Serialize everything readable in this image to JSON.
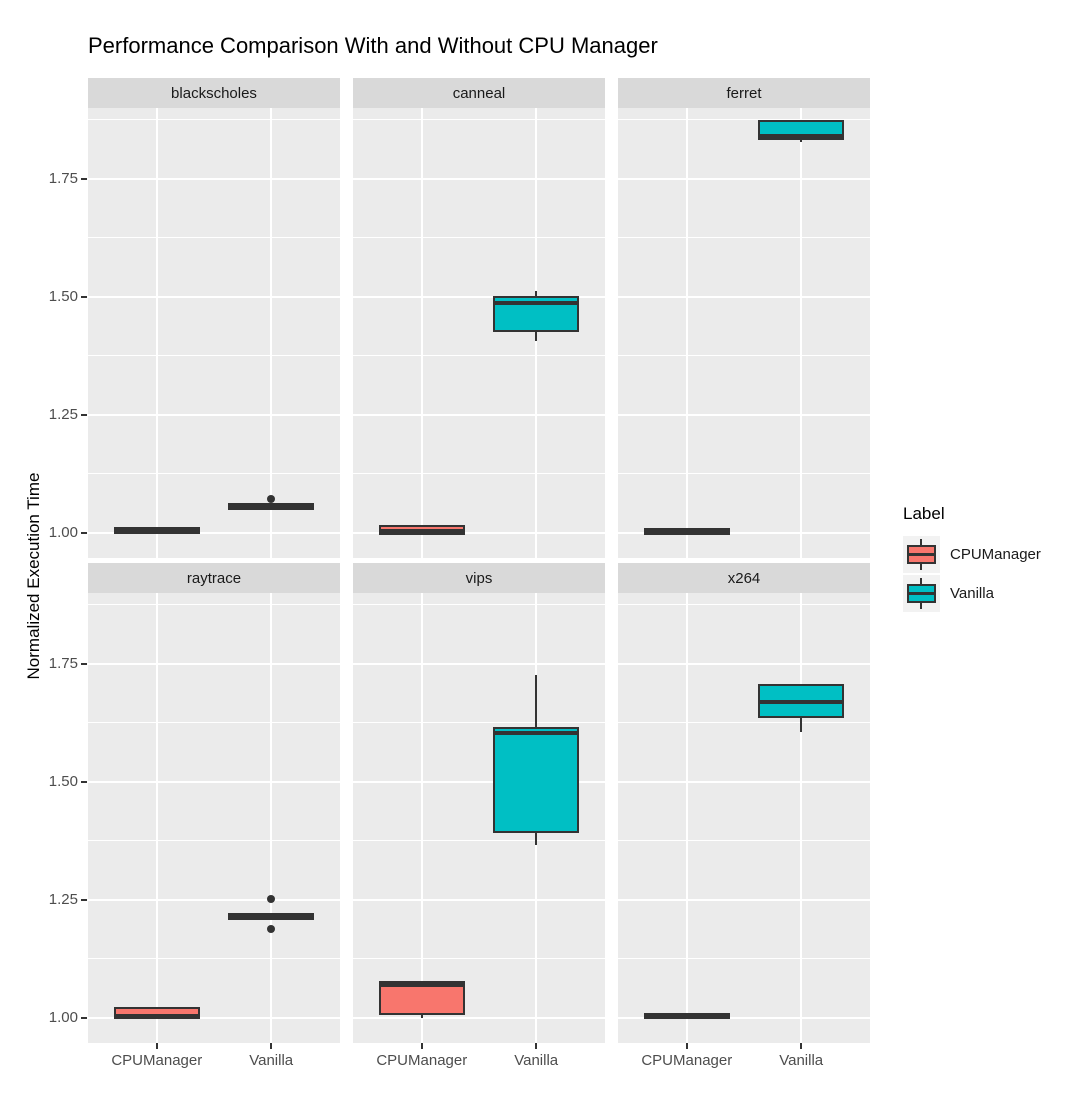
{
  "title": "Performance Comparison With and Without CPU Manager",
  "axes": {
    "y_label": "Normalized Execution Time",
    "y_tick_labels": [
      "1.00",
      "1.25",
      "1.50",
      "1.75"
    ],
    "x_tick_labels": [
      "CPUManager",
      "Vanilla"
    ]
  },
  "legend": {
    "title": "Label",
    "items": [
      {
        "label": "CPUManager",
        "color": "#F8766D"
      },
      {
        "label": "Vanilla",
        "color": "#00BFC4"
      }
    ]
  },
  "colors": {
    "panel_bg": "#EBEBEB",
    "strip_bg": "#D9D9D9",
    "gridline": "#FFFFFF",
    "box_outline": "#333333",
    "tick_text": "#4D4D4D",
    "cpumanager": "#F8766D",
    "vanilla": "#00BFC4"
  },
  "chart_data": {
    "type": "boxplot",
    "title": "Performance Comparison With and Without CPU Manager",
    "ylabel": "Normalized Execution Time",
    "xlabel": "",
    "ylim": [
      0.947,
      1.9
    ],
    "y_breaks": [
      1.0,
      1.25,
      1.5,
      1.75
    ],
    "y_minor_breaks": [
      1.125,
      1.375,
      1.625,
      1.875
    ],
    "x_categories": [
      "CPUManager",
      "Vanilla"
    ],
    "legend_position": "right",
    "grid": true,
    "facets": [
      {
        "name": "blackscholes",
        "boxes": [
          {
            "group": "CPUManager",
            "lo": 1.002,
            "q1": 1.002,
            "med": 1.005,
            "q3": 1.008,
            "hi": 1.008,
            "outliers": []
          },
          {
            "group": "Vanilla",
            "lo": 1.053,
            "q1": 1.053,
            "med": 1.056,
            "q3": 1.059,
            "hi": 1.059,
            "outliers": [
              1.072
            ]
          }
        ]
      },
      {
        "name": "canneal",
        "boxes": [
          {
            "group": "CPUManager",
            "lo": 1.0,
            "q1": 1.0,
            "med": 1.005,
            "q3": 1.012,
            "hi": 1.013,
            "outliers": []
          },
          {
            "group": "Vanilla",
            "lo": 1.407,
            "q1": 1.43,
            "med": 1.486,
            "q3": 1.498,
            "hi": 1.513,
            "outliers": []
          }
        ]
      },
      {
        "name": "ferret",
        "boxes": [
          {
            "group": "CPUManager",
            "lo": 1.0,
            "q1": 1.0,
            "med": 1.003,
            "q3": 1.006,
            "hi": 1.006,
            "outliers": []
          },
          {
            "group": "Vanilla",
            "lo": 1.829,
            "q1": 1.836,
            "med": 1.841,
            "q3": 1.87,
            "hi": 1.872,
            "outliers": []
          }
        ]
      },
      {
        "name": "raytrace",
        "boxes": [
          {
            "group": "CPUManager",
            "lo": 1.001,
            "q1": 1.001,
            "med": 1.004,
            "q3": 1.018,
            "hi": 1.018,
            "outliers": []
          },
          {
            "group": "Vanilla",
            "lo": 1.212,
            "q1": 1.212,
            "med": 1.215,
            "q3": 1.218,
            "hi": 1.218,
            "outliers": [
              1.252,
              1.188
            ]
          }
        ]
      },
      {
        "name": "vips",
        "boxes": [
          {
            "group": "CPUManager",
            "lo": 1.0,
            "q1": 1.01,
            "med": 1.069,
            "q3": 1.074,
            "hi": 1.074,
            "outliers": []
          },
          {
            "group": "Vanilla",
            "lo": 1.366,
            "q1": 1.395,
            "med": 1.603,
            "q3": 1.611,
            "hi": 1.726,
            "outliers": []
          }
        ]
      },
      {
        "name": "x264",
        "boxes": [
          {
            "group": "CPUManager",
            "lo": 1.0,
            "q1": 1.001,
            "med": 1.004,
            "q3": 1.007,
            "hi": 1.007,
            "outliers": []
          },
          {
            "group": "Vanilla",
            "lo": 1.606,
            "q1": 1.639,
            "med": 1.67,
            "q3": 1.703,
            "hi": 1.703,
            "outliers": []
          }
        ]
      }
    ]
  }
}
